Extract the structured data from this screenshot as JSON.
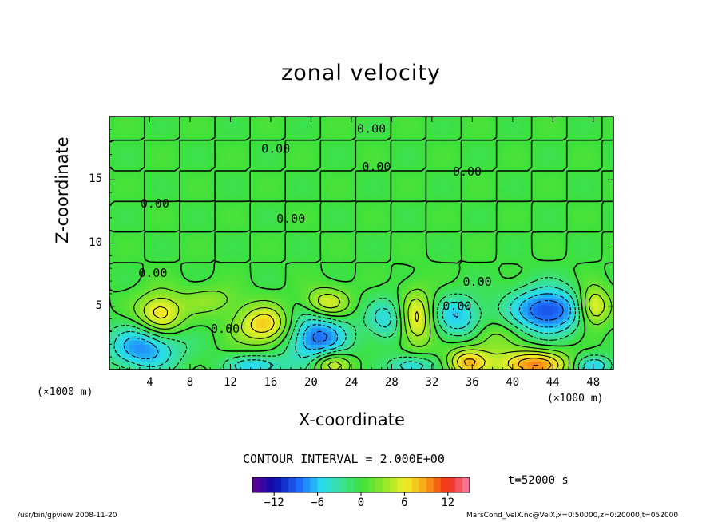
{
  "chart_data": {
    "type": "heatmap",
    "title": "zonal velocity",
    "xlabel": "X-coordinate",
    "ylabel": "Z-coordinate",
    "x_unit": "(×1000 m)",
    "xlim": [
      0,
      50
    ],
    "ylim": [
      0,
      20
    ],
    "x_ticks": [
      4,
      8,
      12,
      16,
      20,
      24,
      28,
      32,
      36,
      40,
      44,
      48
    ],
    "y_ticks": [
      5,
      10,
      15
    ],
    "contour_interval": "CONTOUR INTERVAL = 2.000E+00",
    "contour_labels": [
      {
        "text": "0.00",
        "x": 26,
        "z": 19.0
      },
      {
        "text": "0.00",
        "x": 16.5,
        "z": 17.4
      },
      {
        "text": "0.00",
        "x": 26.5,
        "z": 16.0
      },
      {
        "text": "0.00",
        "x": 35.5,
        "z": 15.6
      },
      {
        "text": "0.00",
        "x": 4.5,
        "z": 13.1
      },
      {
        "text": "0.00",
        "x": 18,
        "z": 11.9
      },
      {
        "text": "0.00",
        "x": 4.3,
        "z": 7.6
      },
      {
        "text": "0.00",
        "x": 36.5,
        "z": 6.9
      },
      {
        "text": "0.00",
        "x": 34.5,
        "z": 5.0
      },
      {
        "text": "0.00",
        "x": 11.5,
        "z": 3.2
      }
    ],
    "features": [
      {
        "x": 5.0,
        "z": 4.3,
        "u": 8,
        "sx": 1.6,
        "sz": 1.2
      },
      {
        "x": 15.5,
        "z": 3.5,
        "u": 8,
        "sx": 2.0,
        "sz": 1.1
      },
      {
        "x": 21.5,
        "z": 5.2,
        "u": 7,
        "sx": 1.6,
        "sz": 0.9
      },
      {
        "x": 30.5,
        "z": 4.0,
        "u": 7,
        "sx": 1.2,
        "sz": 1.6
      },
      {
        "x": 48.0,
        "z": 5.0,
        "u": 8,
        "sx": 1.1,
        "sz": 1.1
      },
      {
        "x": 42.0,
        "z": 0.4,
        "u": 10,
        "sx": 2.5,
        "sz": 0.8
      },
      {
        "x": 35.5,
        "z": 0.6,
        "u": 8,
        "sx": 1.4,
        "sz": 0.8
      },
      {
        "x": 22.0,
        "z": 0.5,
        "u": 7,
        "sx": 1.4,
        "sz": 0.7
      },
      {
        "x": 3.5,
        "z": 1.8,
        "u": -8,
        "sx": 2.5,
        "sz": 1.3
      },
      {
        "x": 20.5,
        "z": 2.6,
        "u": -9,
        "sx": 2.2,
        "sz": 1.6
      },
      {
        "x": 27.5,
        "z": 4.0,
        "u": -5,
        "sx": 1.4,
        "sz": 1.2
      },
      {
        "x": 34.5,
        "z": 4.2,
        "u": -6,
        "sx": 1.8,
        "sz": 1.2
      },
      {
        "x": 43.5,
        "z": 4.7,
        "u": -10,
        "sx": 2.6,
        "sz": 1.3
      },
      {
        "x": 14.5,
        "z": 0.3,
        "u": -6,
        "sx": 2.0,
        "sz": 0.6
      },
      {
        "x": 30.0,
        "z": 0.3,
        "u": -6,
        "sx": 1.6,
        "sz": 0.6
      },
      {
        "x": 48.0,
        "z": 0.3,
        "u": -6,
        "sx": 1.4,
        "sz": 0.6
      },
      {
        "x": 10.0,
        "z": 5.5,
        "u": 3,
        "sx": 2.0,
        "sz": 0.8
      },
      {
        "x": 38.0,
        "z": 2.5,
        "u": 3,
        "sx": 1.5,
        "sz": 1.0
      }
    ],
    "colorbar": {
      "range": [
        -15,
        15
      ],
      "ticks": [
        -12,
        -6,
        0,
        6,
        12
      ]
    },
    "time_label": "t=52000 s",
    "colors": {
      "background_field": "#33e633",
      "contour": "#000000"
    }
  },
  "footer": {
    "left": "/usr/bin/gpview   2008-11-20",
    "right": "MarsCond_VelX.nc@VelX,x=0:50000,z=0:20000,t=052000"
  }
}
